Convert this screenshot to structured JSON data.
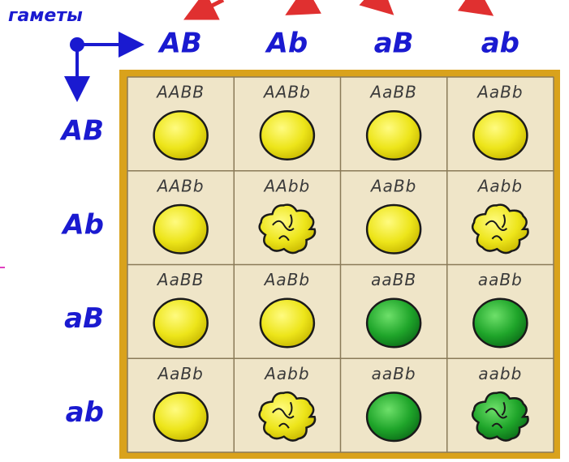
{
  "label": "гаметы",
  "columns": [
    "AB",
    "Ab",
    "aB",
    "ab"
  ],
  "rows": [
    "AB",
    "Ab",
    "aB",
    "ab"
  ],
  "cells": [
    [
      "AABB",
      "AABb",
      "AaBB",
      "AaBb"
    ],
    [
      "AABb",
      "AAbb",
      "AaBb",
      "Aabb"
    ],
    [
      "AaBB",
      "AaBb",
      "aaBB",
      "aaBb"
    ],
    [
      "AaBb",
      "Aabb",
      "aaBb",
      "aabb"
    ]
  ]
}
